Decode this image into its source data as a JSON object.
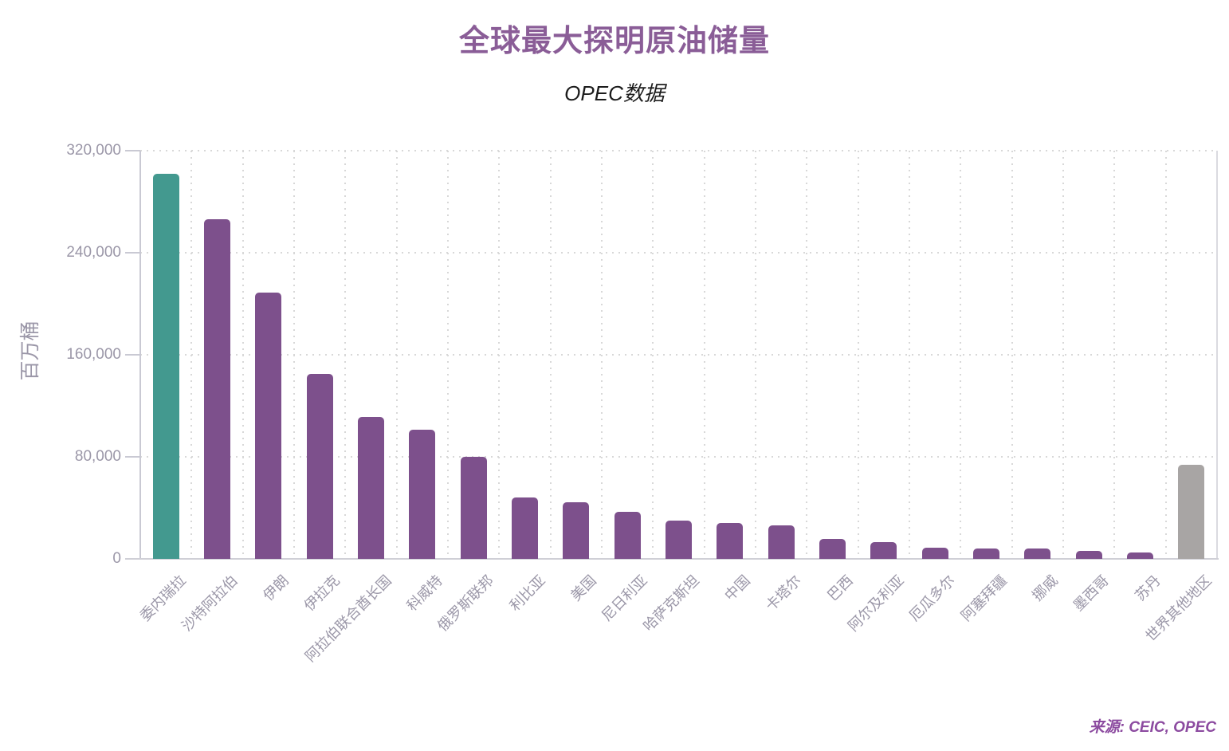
{
  "header": {
    "title": "全球最大探明原油储量",
    "subtitle": "OPEC数据"
  },
  "y_axis": {
    "label": "百万桶"
  },
  "source": {
    "label": "来源: CEIC, OPEC"
  },
  "colors": {
    "highlight_bar": "#43998f",
    "default_bar": "#7d508c",
    "rest_of_world_bar": "#a8a5a4",
    "title_text": "#8a5d97",
    "source_text": "#8c4ba0",
    "axis_text": "#9b97a8",
    "gridline": "#d8d8d8",
    "axis_line": "#c9c9d3",
    "background": "#ffffff"
  },
  "chart_data": {
    "type": "bar",
    "title": "全球最大探明原油储量",
    "subtitle": "OPEC数据",
    "xlabel": "",
    "ylabel": "百万桶",
    "ylim": [
      0,
      320000
    ],
    "grid": "dotted horizontal and vertical gridlines",
    "legend": "none",
    "yticks": [
      {
        "value": 0,
        "label": "0"
      },
      {
        "value": 80000,
        "label": "80,000"
      },
      {
        "value": 160000,
        "label": "160,000"
      },
      {
        "value": 240000,
        "label": "240,000"
      },
      {
        "value": 320000,
        "label": "320,000"
      }
    ],
    "categories": [
      "委内瑞拉",
      "沙特阿拉伯",
      "伊朗",
      "伊拉克",
      "阿拉伯联合酋长国",
      "科威特",
      "俄罗斯联邦",
      "利比亚",
      "美国",
      "尼日利亚",
      "哈萨克斯坦",
      "中国",
      "卡塔尔",
      "巴西",
      "阿尔及利亚",
      "厄瓜多尔",
      "阿塞拜疆",
      "挪威",
      "墨西哥",
      "苏丹",
      "世界其他地区"
    ],
    "values": [
      302000,
      266500,
      208600,
      145000,
      111000,
      101500,
      80000,
      48400,
      44500,
      37000,
      30000,
      28000,
      26000,
      15500,
      13000,
      8700,
      8100,
      8100,
      6200,
      5000,
      73700
    ],
    "bar_colors": [
      "#43998f",
      "#7d508c",
      "#7d508c",
      "#7d508c",
      "#7d508c",
      "#7d508c",
      "#7d508c",
      "#7d508c",
      "#7d508c",
      "#7d508c",
      "#7d508c",
      "#7d508c",
      "#7d508c",
      "#7d508c",
      "#7d508c",
      "#7d508c",
      "#7d508c",
      "#7d508c",
      "#7d508c",
      "#7d508c",
      "#a8a5a4"
    ],
    "source": "来源: CEIC, OPEC"
  }
}
